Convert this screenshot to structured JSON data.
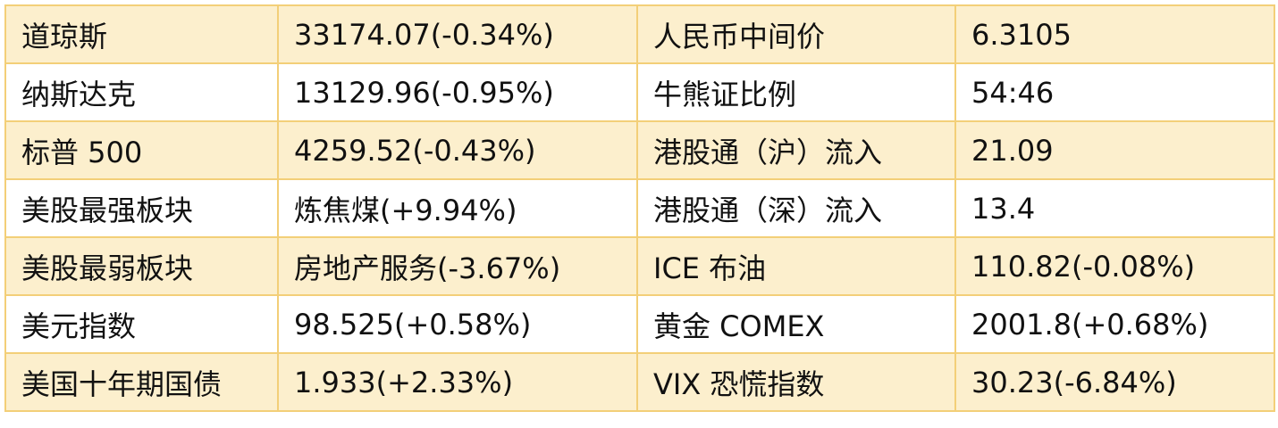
{
  "table": {
    "rows": [
      [
        "道琼斯",
        "33174.07(-0.34%)",
        "人民币中间价",
        "6.3105"
      ],
      [
        "纳斯达克",
        "13129.96(-0.95%)",
        "牛熊证比例",
        "54:46"
      ],
      [
        "标普 500",
        "4259.52(-0.43%)",
        "港股通（沪）流入",
        "21.09"
      ],
      [
        "美股最强板块",
        "炼焦煤(+9.94%)",
        "港股通（深）流入",
        "13.4"
      ],
      [
        "美股最弱板块",
        "房地产服务(-3.67%)",
        "ICE 布油",
        "110.82(-0.08%)"
      ],
      [
        "美元指数",
        "98.525(+0.58%)",
        "黄金 COMEX",
        "2001.8(+0.68%)"
      ],
      [
        "美国十年期国债",
        "1.933(+2.33%)",
        "VIX 恐慌指数",
        "30.23(-6.84%)"
      ]
    ]
  }
}
